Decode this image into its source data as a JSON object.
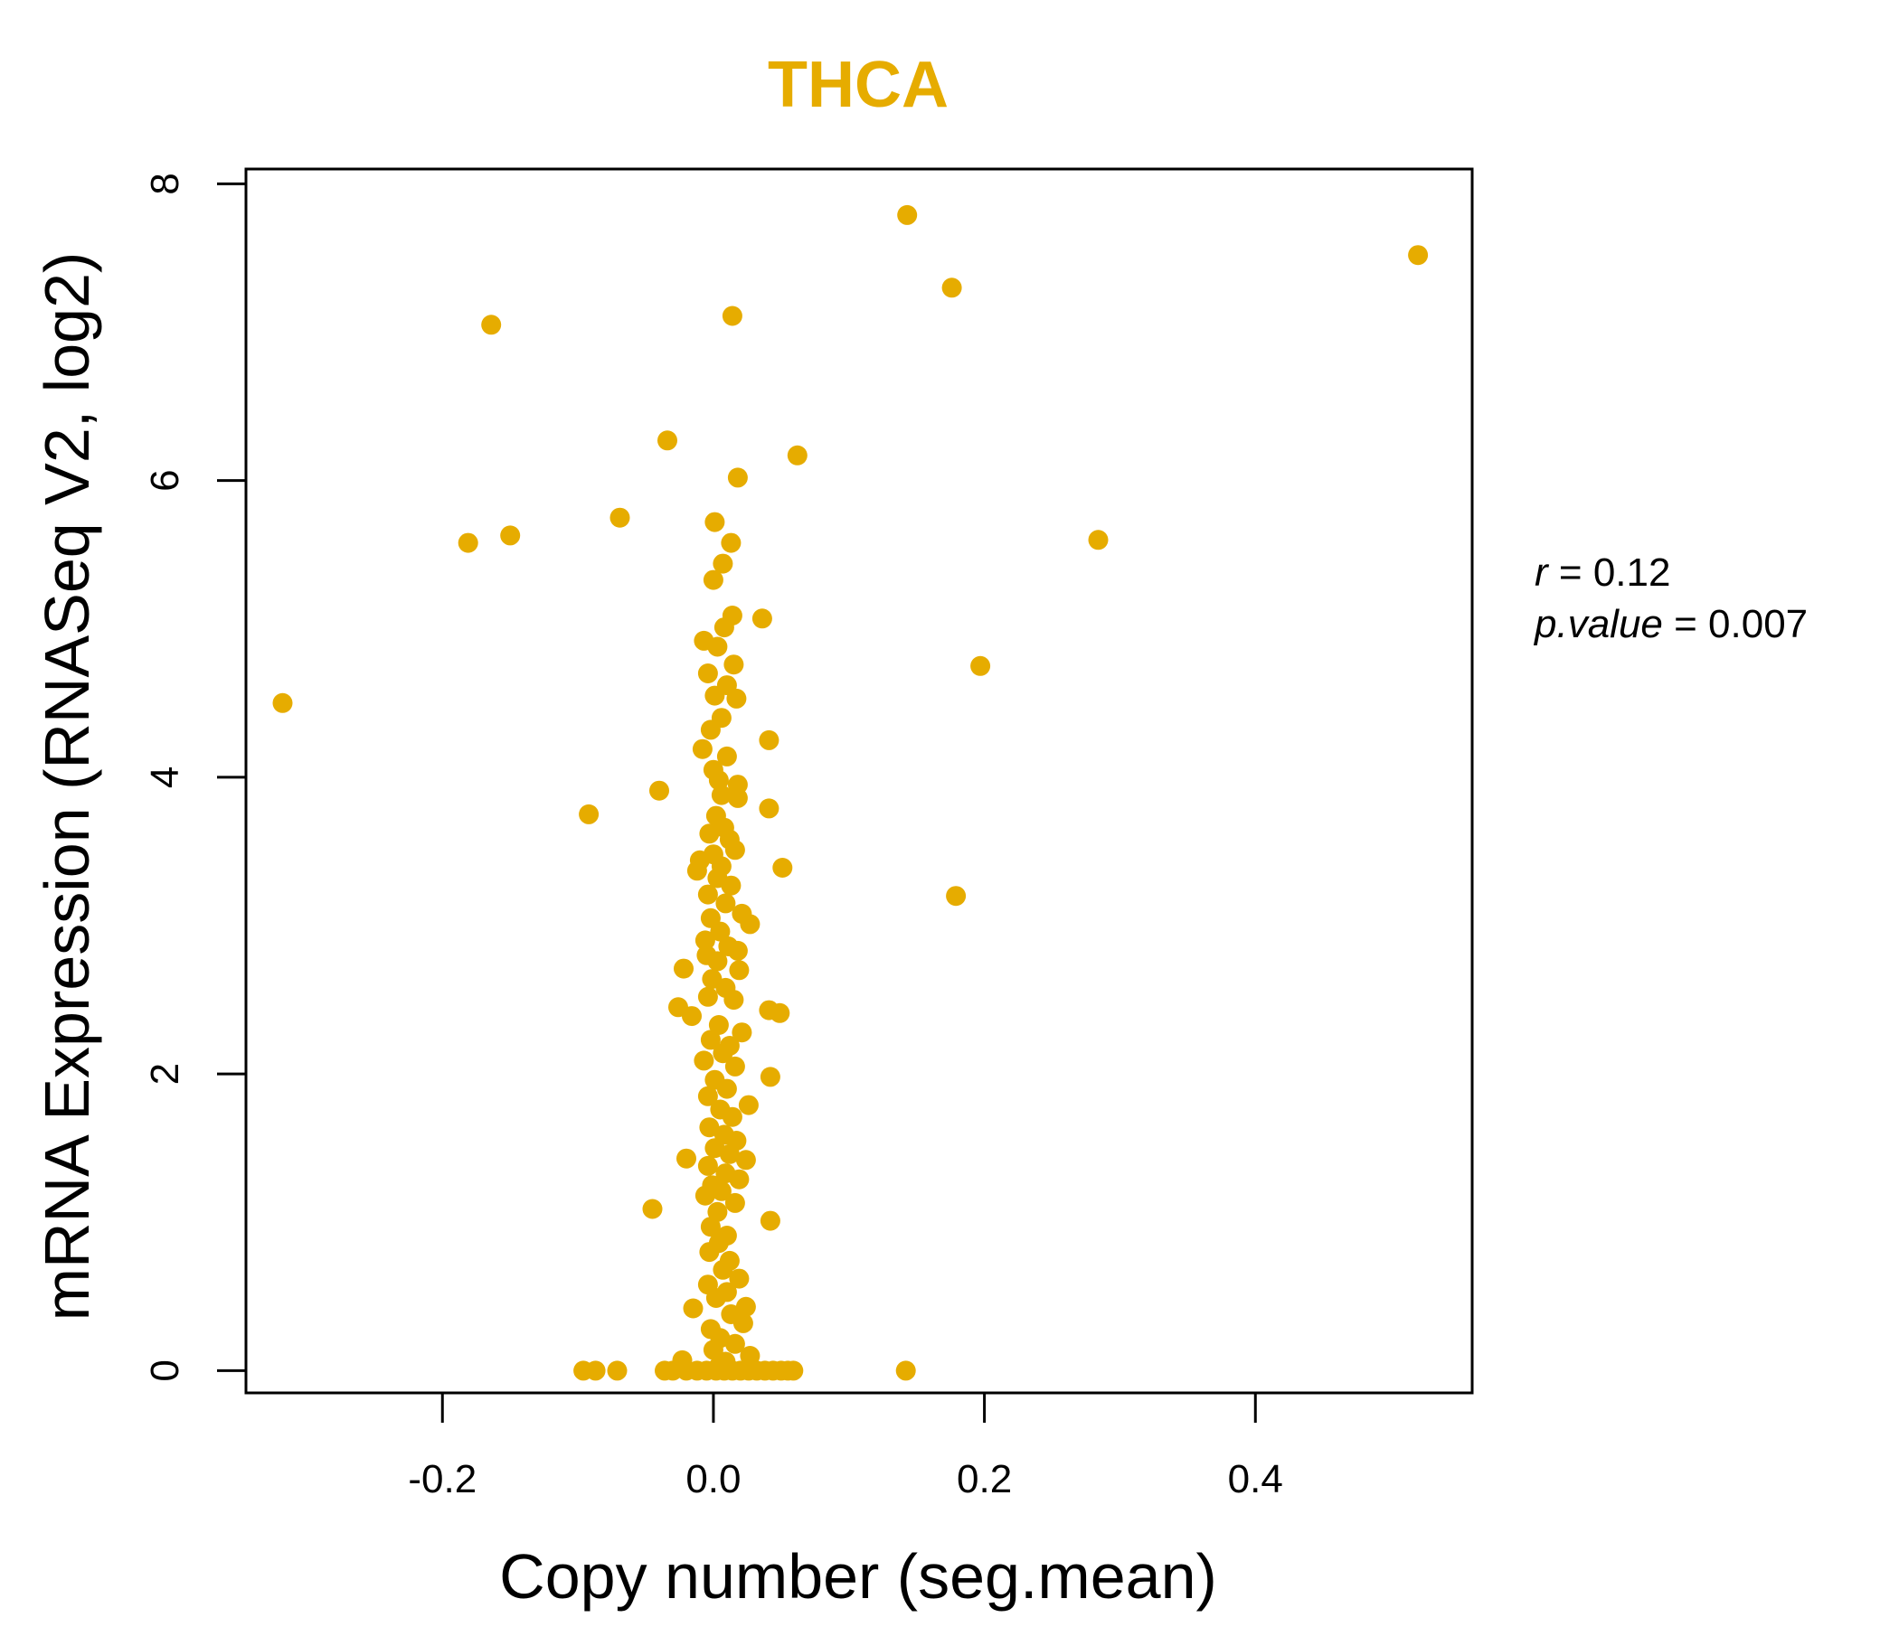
{
  "chart_data": {
    "type": "scatter",
    "title": "THCA",
    "xlabel": "Copy number (seg.mean)",
    "ylabel": "mRNA Expression (RNASeq V2, log2)",
    "xlim": [
      -0.345,
      0.56
    ],
    "ylim": [
      -0.15,
      8.1
    ],
    "x_ticks": [
      -0.2,
      0.0,
      0.2,
      0.4
    ],
    "x_tick_labels": [
      "-0.2",
      "0.0",
      "0.2",
      "0.4"
    ],
    "y_ticks": [
      0,
      2,
      4,
      6,
      8
    ],
    "y_tick_labels": [
      "0",
      "2",
      "4",
      "6",
      "8"
    ],
    "color": "#E6AC00",
    "stats": {
      "r_symbol": "r",
      "r_value": "0.12",
      "p_symbol": "p.value",
      "p_value": "0.007"
    },
    "points": [
      {
        "x": -0.318,
        "y": 4.5
      },
      {
        "x": -0.181,
        "y": 5.58
      },
      {
        "x": -0.164,
        "y": 7.05
      },
      {
        "x": -0.15,
        "y": 5.63
      },
      {
        "x": -0.069,
        "y": 5.75
      },
      {
        "x": -0.034,
        "y": 6.27
      },
      {
        "x": -0.092,
        "y": 3.75
      },
      {
        "x": -0.04,
        "y": 3.91
      },
      {
        "x": 0.014,
        "y": 7.11
      },
      {
        "x": 0.062,
        "y": 6.17
      },
      {
        "x": 0.018,
        "y": 6.02
      },
      {
        "x": 0.001,
        "y": 5.72
      },
      {
        "x": 0.013,
        "y": 5.58
      },
      {
        "x": 0.007,
        "y": 5.44
      },
      {
        "x": 0.0,
        "y": 5.33
      },
      {
        "x": 0.036,
        "y": 5.07
      },
      {
        "x": 0.014,
        "y": 5.09
      },
      {
        "x": 0.008,
        "y": 5.01
      },
      {
        "x": -0.007,
        "y": 4.92
      },
      {
        "x": 0.003,
        "y": 4.88
      },
      {
        "x": 0.015,
        "y": 4.76
      },
      {
        "x": -0.004,
        "y": 4.7
      },
      {
        "x": 0.01,
        "y": 4.62
      },
      {
        "x": 0.001,
        "y": 4.55
      },
      {
        "x": 0.017,
        "y": 4.53
      },
      {
        "x": 0.006,
        "y": 4.4
      },
      {
        "x": -0.002,
        "y": 4.32
      },
      {
        "x": 0.041,
        "y": 4.25
      },
      {
        "x": -0.008,
        "y": 4.19
      },
      {
        "x": 0.01,
        "y": 4.14
      },
      {
        "x": 0.0,
        "y": 4.05
      },
      {
        "x": 0.004,
        "y": 3.98
      },
      {
        "x": 0.018,
        "y": 3.95
      },
      {
        "x": 0.006,
        "y": 3.88
      },
      {
        "x": 0.018,
        "y": 3.86
      },
      {
        "x": 0.041,
        "y": 3.79
      },
      {
        "x": 0.002,
        "y": 3.74
      },
      {
        "x": 0.008,
        "y": 3.66
      },
      {
        "x": -0.003,
        "y": 3.62
      },
      {
        "x": 0.012,
        "y": 3.58
      },
      {
        "x": 0.016,
        "y": 3.51
      },
      {
        "x": 0.0,
        "y": 3.48
      },
      {
        "x": -0.01,
        "y": 3.44
      },
      {
        "x": 0.006,
        "y": 3.4
      },
      {
        "x": 0.051,
        "y": 3.39
      },
      {
        "x": -0.012,
        "y": 3.37
      },
      {
        "x": 0.003,
        "y": 3.32
      },
      {
        "x": 0.013,
        "y": 3.27
      },
      {
        "x": -0.004,
        "y": 3.21
      },
      {
        "x": 0.009,
        "y": 3.15
      },
      {
        "x": 0.021,
        "y": 3.08
      },
      {
        "x": -0.002,
        "y": 3.05
      },
      {
        "x": 0.027,
        "y": 3.01
      },
      {
        "x": 0.005,
        "y": 2.96
      },
      {
        "x": -0.006,
        "y": 2.9
      },
      {
        "x": 0.011,
        "y": 2.86
      },
      {
        "x": 0.018,
        "y": 2.83
      },
      {
        "x": -0.005,
        "y": 2.8
      },
      {
        "x": 0.003,
        "y": 2.76
      },
      {
        "x": -0.022,
        "y": 2.71
      },
      {
        "x": 0.019,
        "y": 2.7
      },
      {
        "x": -0.001,
        "y": 2.64
      },
      {
        "x": 0.009,
        "y": 2.58
      },
      {
        "x": -0.004,
        "y": 2.52
      },
      {
        "x": 0.015,
        "y": 2.5
      },
      {
        "x": -0.026,
        "y": 2.45
      },
      {
        "x": 0.041,
        "y": 2.43
      },
      {
        "x": 0.049,
        "y": 2.41
      },
      {
        "x": -0.016,
        "y": 2.39
      },
      {
        "x": 0.004,
        "y": 2.33
      },
      {
        "x": 0.021,
        "y": 2.28
      },
      {
        "x": -0.002,
        "y": 2.23
      },
      {
        "x": 0.012,
        "y": 2.19
      },
      {
        "x": 0.007,
        "y": 2.14
      },
      {
        "x": -0.007,
        "y": 2.09
      },
      {
        "x": 0.016,
        "y": 2.05
      },
      {
        "x": 0.042,
        "y": 1.98
      },
      {
        "x": 0.001,
        "y": 1.96
      },
      {
        "x": 0.01,
        "y": 1.9
      },
      {
        "x": -0.004,
        "y": 1.85
      },
      {
        "x": 0.026,
        "y": 1.79
      },
      {
        "x": 0.005,
        "y": 1.76
      },
      {
        "x": 0.014,
        "y": 1.71
      },
      {
        "x": -0.003,
        "y": 1.64
      },
      {
        "x": 0.008,
        "y": 1.59
      },
      {
        "x": 0.017,
        "y": 1.55
      },
      {
        "x": 0.001,
        "y": 1.5
      },
      {
        "x": 0.012,
        "y": 1.46
      },
      {
        "x": -0.02,
        "y": 1.43
      },
      {
        "x": 0.024,
        "y": 1.42
      },
      {
        "x": -0.004,
        "y": 1.38
      },
      {
        "x": 0.009,
        "y": 1.33
      },
      {
        "x": 0.019,
        "y": 1.29
      },
      {
        "x": -0.001,
        "y": 1.25
      },
      {
        "x": 0.006,
        "y": 1.21
      },
      {
        "x": -0.006,
        "y": 1.18
      },
      {
        "x": 0.016,
        "y": 1.13
      },
      {
        "x": -0.045,
        "y": 1.09
      },
      {
        "x": 0.003,
        "y": 1.07
      },
      {
        "x": 0.042,
        "y": 1.01
      },
      {
        "x": -0.002,
        "y": 0.97
      },
      {
        "x": 0.01,
        "y": 0.91
      },
      {
        "x": 0.004,
        "y": 0.86
      },
      {
        "x": -0.003,
        "y": 0.8
      },
      {
        "x": 0.012,
        "y": 0.74
      },
      {
        "x": 0.007,
        "y": 0.68
      },
      {
        "x": 0.019,
        "y": 0.62
      },
      {
        "x": -0.004,
        "y": 0.58
      },
      {
        "x": 0.01,
        "y": 0.53
      },
      {
        "x": 0.002,
        "y": 0.49
      },
      {
        "x": 0.024,
        "y": 0.43
      },
      {
        "x": -0.015,
        "y": 0.42
      },
      {
        "x": 0.013,
        "y": 0.38
      },
      {
        "x": 0.022,
        "y": 0.32
      },
      {
        "x": -0.002,
        "y": 0.28
      },
      {
        "x": 0.005,
        "y": 0.22
      },
      {
        "x": 0.016,
        "y": 0.18
      },
      {
        "x": 0.0,
        "y": 0.14
      },
      {
        "x": 0.027,
        "y": 0.1
      },
      {
        "x": -0.023,
        "y": 0.07
      },
      {
        "x": 0.009,
        "y": 0.06
      },
      {
        "x": 0.004,
        "y": 0.03
      },
      {
        "x": -0.096,
        "y": 0.0
      },
      {
        "x": -0.087,
        "y": 0.0
      },
      {
        "x": -0.071,
        "y": 0.0
      },
      {
        "x": -0.036,
        "y": 0.0
      },
      {
        "x": -0.03,
        "y": 0.0
      },
      {
        "x": -0.02,
        "y": 0.0
      },
      {
        "x": -0.012,
        "y": 0.0
      },
      {
        "x": -0.005,
        "y": 0.0
      },
      {
        "x": 0.002,
        "y": 0.0
      },
      {
        "x": 0.008,
        "y": 0.0
      },
      {
        "x": 0.014,
        "y": 0.0
      },
      {
        "x": 0.02,
        "y": 0.0
      },
      {
        "x": 0.026,
        "y": 0.0
      },
      {
        "x": 0.032,
        "y": 0.0
      },
      {
        "x": 0.038,
        "y": 0.0
      },
      {
        "x": 0.044,
        "y": 0.0
      },
      {
        "x": 0.05,
        "y": 0.0
      },
      {
        "x": 0.055,
        "y": 0.0
      },
      {
        "x": 0.059,
        "y": 0.0
      },
      {
        "x": 0.143,
        "y": 7.79
      },
      {
        "x": 0.176,
        "y": 7.3
      },
      {
        "x": 0.52,
        "y": 7.52
      },
      {
        "x": 0.284,
        "y": 5.6
      },
      {
        "x": 0.197,
        "y": 4.75
      },
      {
        "x": 0.179,
        "y": 3.2
      },
      {
        "x": 0.142,
        "y": 0.0
      }
    ]
  }
}
